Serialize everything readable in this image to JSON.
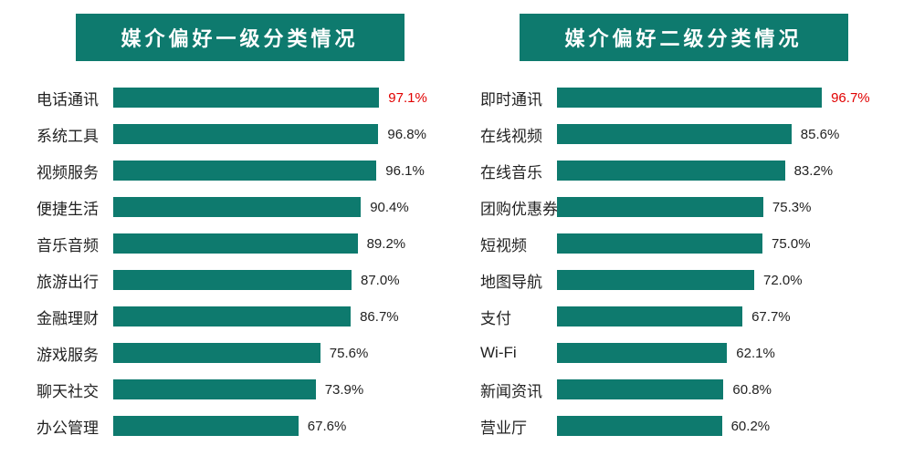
{
  "colors": {
    "title_bg": "#0e7a6e",
    "bar": "#0e7a6e",
    "label": "#222222",
    "value_normal": "#222222",
    "value_highlight": "#e10000",
    "background": "#ffffff"
  },
  "typography": {
    "title_fontsize": 22,
    "label_fontsize": 17,
    "value_fontsize": 15
  },
  "chart_left": {
    "type": "bar",
    "title": "媒介偏好一级分类情况",
    "max_value": 100,
    "bar_area_width": 300,
    "items": [
      {
        "label": "电话通讯",
        "value": 97.1,
        "display": "97.1%",
        "highlight": true
      },
      {
        "label": "系统工具",
        "value": 96.8,
        "display": "96.8%",
        "highlight": false
      },
      {
        "label": "视频服务",
        "value": 96.1,
        "display": "96.1%",
        "highlight": false
      },
      {
        "label": "便捷生活",
        "value": 90.4,
        "display": "90.4%",
        "highlight": false
      },
      {
        "label": "音乐音频",
        "value": 89.2,
        "display": "89.2%",
        "highlight": false
      },
      {
        "label": "旅游出行",
        "value": 87.0,
        "display": "87.0%",
        "highlight": false
      },
      {
        "label": "金融理财",
        "value": 86.7,
        "display": "86.7%",
        "highlight": false
      },
      {
        "label": "游戏服务",
        "value": 75.6,
        "display": "75.6%",
        "highlight": false
      },
      {
        "label": "聊天社交",
        "value": 73.9,
        "display": "73.9%",
        "highlight": false
      },
      {
        "label": "办公管理",
        "value": 67.6,
        "display": "67.6%",
        "highlight": false
      }
    ]
  },
  "chart_right": {
    "type": "bar",
    "title": "媒介偏好二级分类情况",
    "max_value": 100,
    "bar_area_width": 300,
    "items": [
      {
        "label": "即时通讯",
        "value": 96.7,
        "display": "96.7%",
        "highlight": true
      },
      {
        "label": "在线视频",
        "value": 85.6,
        "display": "85.6%",
        "highlight": false
      },
      {
        "label": "在线音乐",
        "value": 83.2,
        "display": "83.2%",
        "highlight": false
      },
      {
        "label": "团购优惠券",
        "value": 75.3,
        "display": "75.3%",
        "highlight": false
      },
      {
        "label": "短视频",
        "value": 75.0,
        "display": "75.0%",
        "highlight": false
      },
      {
        "label": "地图导航",
        "value": 72.0,
        "display": "72.0%",
        "highlight": false
      },
      {
        "label": "支付",
        "value": 67.7,
        "display": "67.7%",
        "highlight": false
      },
      {
        "label": "Wi-Fi",
        "value": 62.1,
        "display": "62.1%",
        "highlight": false
      },
      {
        "label": "新闻资讯",
        "value": 60.8,
        "display": "60.8%",
        "highlight": false
      },
      {
        "label": "营业厅",
        "value": 60.2,
        "display": "60.2%",
        "highlight": false
      }
    ]
  }
}
